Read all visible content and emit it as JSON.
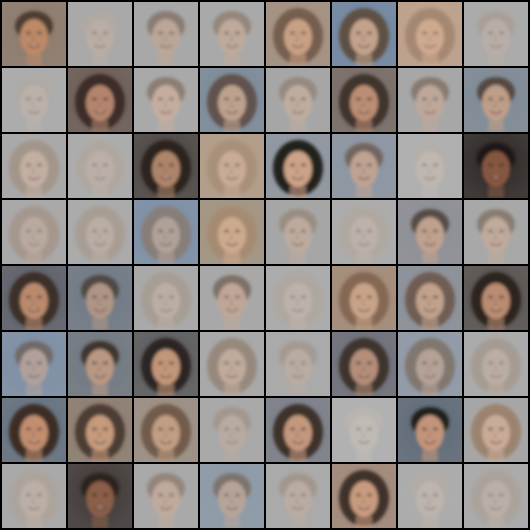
{
  "grid": {
    "rows": 8,
    "cols": 8,
    "background": "#000000",
    "tiles": [
      [
        {
          "bg": "#8d7a6a",
          "skin": "#c08a68",
          "hair": "#4a3a30",
          "tone": "dark",
          "hair_style": "short"
        },
        {
          "bg": "#a9a9a9",
          "skin": "#c9b2a0",
          "hair": "#b5a99a",
          "tone": "faint",
          "hair_style": "short"
        },
        {
          "bg": "#a8a8a8",
          "skin": "#c4a691",
          "hair": "#7d6b5e",
          "tone": "light",
          "hair_style": "short"
        },
        {
          "bg": "#a9a9a9",
          "skin": "#c7aa96",
          "hair": "#8b7868",
          "tone": "light",
          "hair_style": "short"
        },
        {
          "bg": "#a38f7e",
          "skin": "#cfa486",
          "hair": "#6e5646",
          "tone": "mid",
          "hair_style": "long"
        },
        {
          "bg": "#6f86a2",
          "skin": "#d2a888",
          "hair": "#5b4636",
          "tone": "mid",
          "hair_style": "long"
        },
        {
          "bg": "#c0a28a",
          "skin": "#d4ad92",
          "hair": "#9b7e68",
          "tone": "light",
          "hair_style": "long"
        },
        {
          "bg": "#ababab",
          "skin": "#c6b2a4",
          "hair": "#a59685",
          "tone": "faint",
          "hair_style": "short"
        }
      ],
      [
        {
          "bg": "#acacac",
          "skin": "#c8b7a8",
          "hair": "#b2a89d",
          "tone": "faint",
          "hair_style": "short"
        },
        {
          "bg": "#6a5a52",
          "skin": "#b88770",
          "hair": "#3a2c26",
          "tone": "dark",
          "hair_style": "long"
        },
        {
          "bg": "#a9a9a9",
          "skin": "#d1b09a",
          "hair": "#7f6c5f",
          "tone": "light",
          "hair_style": "short"
        },
        {
          "bg": "#7b8a9a",
          "skin": "#c9a68c",
          "hair": "#5b4a3f",
          "tone": "mid",
          "hair_style": "long"
        },
        {
          "bg": "#a6a6a6",
          "skin": "#c9b09d",
          "hair": "#8f7d70",
          "tone": "light",
          "hair_style": "short"
        },
        {
          "bg": "#766a64",
          "skin": "#bf9074",
          "hair": "#3e312b",
          "tone": "dark",
          "hair_style": "long"
        },
        {
          "bg": "#a7a7a7",
          "skin": "#c8a894",
          "hair": "#7a675a",
          "tone": "light",
          "hair_style": "short"
        },
        {
          "bg": "#7e8a96",
          "skin": "#caa286",
          "hair": "#4d3e35",
          "tone": "mid",
          "hair_style": "short"
        }
      ],
      [
        {
          "bg": "#a9a9a9",
          "skin": "#cdb2a0",
          "hair": "#a08e7e",
          "tone": "light",
          "hair_style": "long"
        },
        {
          "bg": "#adadad",
          "skin": "#c9b3a3",
          "hair": "#b0a394",
          "tone": "faint",
          "hair_style": "long"
        },
        {
          "bg": "#4a4440",
          "skin": "#b3896d",
          "hair": "#2a211c",
          "tone": "dark",
          "hair_style": "long"
        },
        {
          "bg": "#b39c86",
          "skin": "#d2b39c",
          "hair": "#a48b74",
          "tone": "light",
          "hair_style": "long"
        },
        {
          "bg": "#8e96a0",
          "skin": "#d0a487",
          "hair": "#1f1a18",
          "tone": "dark",
          "hair_style": "long"
        },
        {
          "bg": "#8c95a3",
          "skin": "#c8a690",
          "hair": "#6d5d52",
          "tone": "mid",
          "hair_style": "short"
        },
        {
          "bg": "#b1b1b1",
          "skin": "#cdbdb0",
          "hair": "#b8ada2",
          "tone": "faint",
          "hair_style": "short"
        },
        {
          "bg": "#2d2624",
          "skin": "#8b5a42",
          "hair": "#1d1715",
          "tone": "dark",
          "hair_style": "short"
        }
      ],
      [
        {
          "bg": "#a9a9a9",
          "skin": "#c9ab96",
          "hair": "#a08673",
          "tone": "faint",
          "hair_style": "long"
        },
        {
          "bg": "#ababab",
          "skin": "#c9b09e",
          "hair": "#a4917f",
          "tone": "faint",
          "hair_style": "long"
        },
        {
          "bg": "#7c8fa8",
          "skin": "#c7a892",
          "hair": "#8a7666",
          "tone": "light",
          "hair_style": "long"
        },
        {
          "bg": "#a49480",
          "skin": "#d4ae92",
          "hair": "#a58a6e",
          "tone": "mid",
          "hair_style": "long"
        },
        {
          "bg": "#a6a6a6",
          "skin": "#c6ad9b",
          "hair": "#958373",
          "tone": "light",
          "hair_style": "short"
        },
        {
          "bg": "#acacac",
          "skin": "#cdb8a8",
          "hair": "#b3a698",
          "tone": "faint",
          "hair_style": "long"
        },
        {
          "bg": "#8d8f96",
          "skin": "#c9a58c",
          "hair": "#4e4038",
          "tone": "mid",
          "hair_style": "short"
        },
        {
          "bg": "#a8a8a8",
          "skin": "#c9ab96",
          "hair": "#7c6a5c",
          "tone": "light",
          "hair_style": "short"
        }
      ],
      [
        {
          "bg": "#5c5e68",
          "skin": "#c08d6e",
          "hair": "#3b2f28",
          "tone": "dark",
          "hair_style": "long"
        },
        {
          "bg": "#6f7884",
          "skin": "#b99a86",
          "hair": "#4a3f39",
          "tone": "mid",
          "hair_style": "short"
        },
        {
          "bg": "#a9a9a9",
          "skin": "#cdb4a2",
          "hair": "#a4927f",
          "tone": "faint",
          "hair_style": "long"
        },
        {
          "bg": "#a8a8a8",
          "skin": "#c9a690",
          "hair": "#6b5a4e",
          "tone": "light",
          "hair_style": "short"
        },
        {
          "bg": "#acacac",
          "skin": "#cdb9aa",
          "hair": "#b1a496",
          "tone": "faint",
          "hair_style": "long"
        },
        {
          "bg": "#a48a76",
          "skin": "#cfa88c",
          "hair": "#80624e",
          "tone": "mid",
          "hair_style": "long"
        },
        {
          "bg": "#8a8f98",
          "skin": "#caa58b",
          "hair": "#6a5546",
          "tone": "mid",
          "hair_style": "long"
        },
        {
          "bg": "#55504e",
          "skin": "#c09074",
          "hair": "#2a211d",
          "tone": "dark",
          "hair_style": "long"
        }
      ],
      [
        {
          "bg": "#7d8fa6",
          "skin": "#c6a894",
          "hair": "#6a5a50",
          "tone": "light",
          "hair_style": "short"
        },
        {
          "bg": "#707780",
          "skin": "#bd9a84",
          "hair": "#3a302b",
          "tone": "dark",
          "hair_style": "short"
        },
        {
          "bg": "#5a5a5c",
          "skin": "#c89a7c",
          "hair": "#2b2320",
          "tone": "dark",
          "hair_style": "long"
        },
        {
          "bg": "#a9a9a9",
          "skin": "#c9ab96",
          "hair": "#8f7b6b",
          "tone": "light",
          "hair_style": "long"
        },
        {
          "bg": "#aaaaaa",
          "skin": "#c8ae9c",
          "hair": "#9d8a79",
          "tone": "faint",
          "hair_style": "short"
        },
        {
          "bg": "#6c6e78",
          "skin": "#b8907a",
          "hair": "#3a302c",
          "tone": "dark",
          "hair_style": "long"
        },
        {
          "bg": "#8f9aa8",
          "skin": "#c5a690",
          "hair": "#7a6759",
          "tone": "light",
          "hair_style": "long"
        },
        {
          "bg": "#ababab",
          "skin": "#cbb09c",
          "hair": "#9f8c7b",
          "tone": "faint",
          "hair_style": "long"
        }
      ],
      [
        {
          "bg": "#62707e",
          "skin": "#c69070",
          "hair": "#3a2c24",
          "tone": "dark",
          "hair_style": "long"
        },
        {
          "bg": "#8e7c6e",
          "skin": "#c89c7e",
          "hair": "#4a3a30",
          "tone": "dark",
          "hair_style": "long"
        },
        {
          "bg": "#9c8e82",
          "skin": "#c8a084",
          "hair": "#6a5242",
          "tone": "mid",
          "hair_style": "long"
        },
        {
          "bg": "#a9a9a9",
          "skin": "#c7ad9b",
          "hair": "#9a8775",
          "tone": "faint",
          "hair_style": "short"
        },
        {
          "bg": "#7a7e88",
          "skin": "#c89a7e",
          "hair": "#3a2e28",
          "tone": "dark",
          "hair_style": "long"
        },
        {
          "bg": "#b2b2b2",
          "skin": "#d0c4ba",
          "hair": "#c0b8b0",
          "tone": "faint",
          "hair_style": "short"
        },
        {
          "bg": "#5e6a78",
          "skin": "#c8977a",
          "hair": "#1e1a18",
          "tone": "dark",
          "hair_style": "short"
        },
        {
          "bg": "#a6a6a6",
          "skin": "#d0ad96",
          "hair": "#9a7e66",
          "tone": "mid",
          "hair_style": "long"
        }
      ],
      [
        {
          "bg": "#a9a9a9",
          "skin": "#cdb6a5",
          "hair": "#b0a090",
          "tone": "faint",
          "hair_style": "long"
        },
        {
          "bg": "#3f3836",
          "skin": "#8e604a",
          "hair": "#2a221f",
          "tone": "dark",
          "hair_style": "short"
        },
        {
          "bg": "#a9a9a9",
          "skin": "#c9ab97",
          "hair": "#8a7767",
          "tone": "light",
          "hair_style": "short"
        },
        {
          "bg": "#8c9aa8",
          "skin": "#c9a892",
          "hair": "#776456",
          "tone": "light",
          "hair_style": "short"
        },
        {
          "bg": "#aaaaaa",
          "skin": "#c9ae9b",
          "hair": "#978473",
          "tone": "faint",
          "hair_style": "short"
        },
        {
          "bg": "#a28878",
          "skin": "#cb9c80",
          "hair": "#3b2d26",
          "tone": "dark",
          "hair_style": "long"
        },
        {
          "bg": "#adadad",
          "skin": "#cdbbae",
          "hair": "#b5aa9f",
          "tone": "faint",
          "hair_style": "short"
        },
        {
          "bg": "#ababab",
          "skin": "#cbb5a5",
          "hair": "#ab9c8d",
          "tone": "faint",
          "hair_style": "long"
        }
      ]
    ]
  }
}
